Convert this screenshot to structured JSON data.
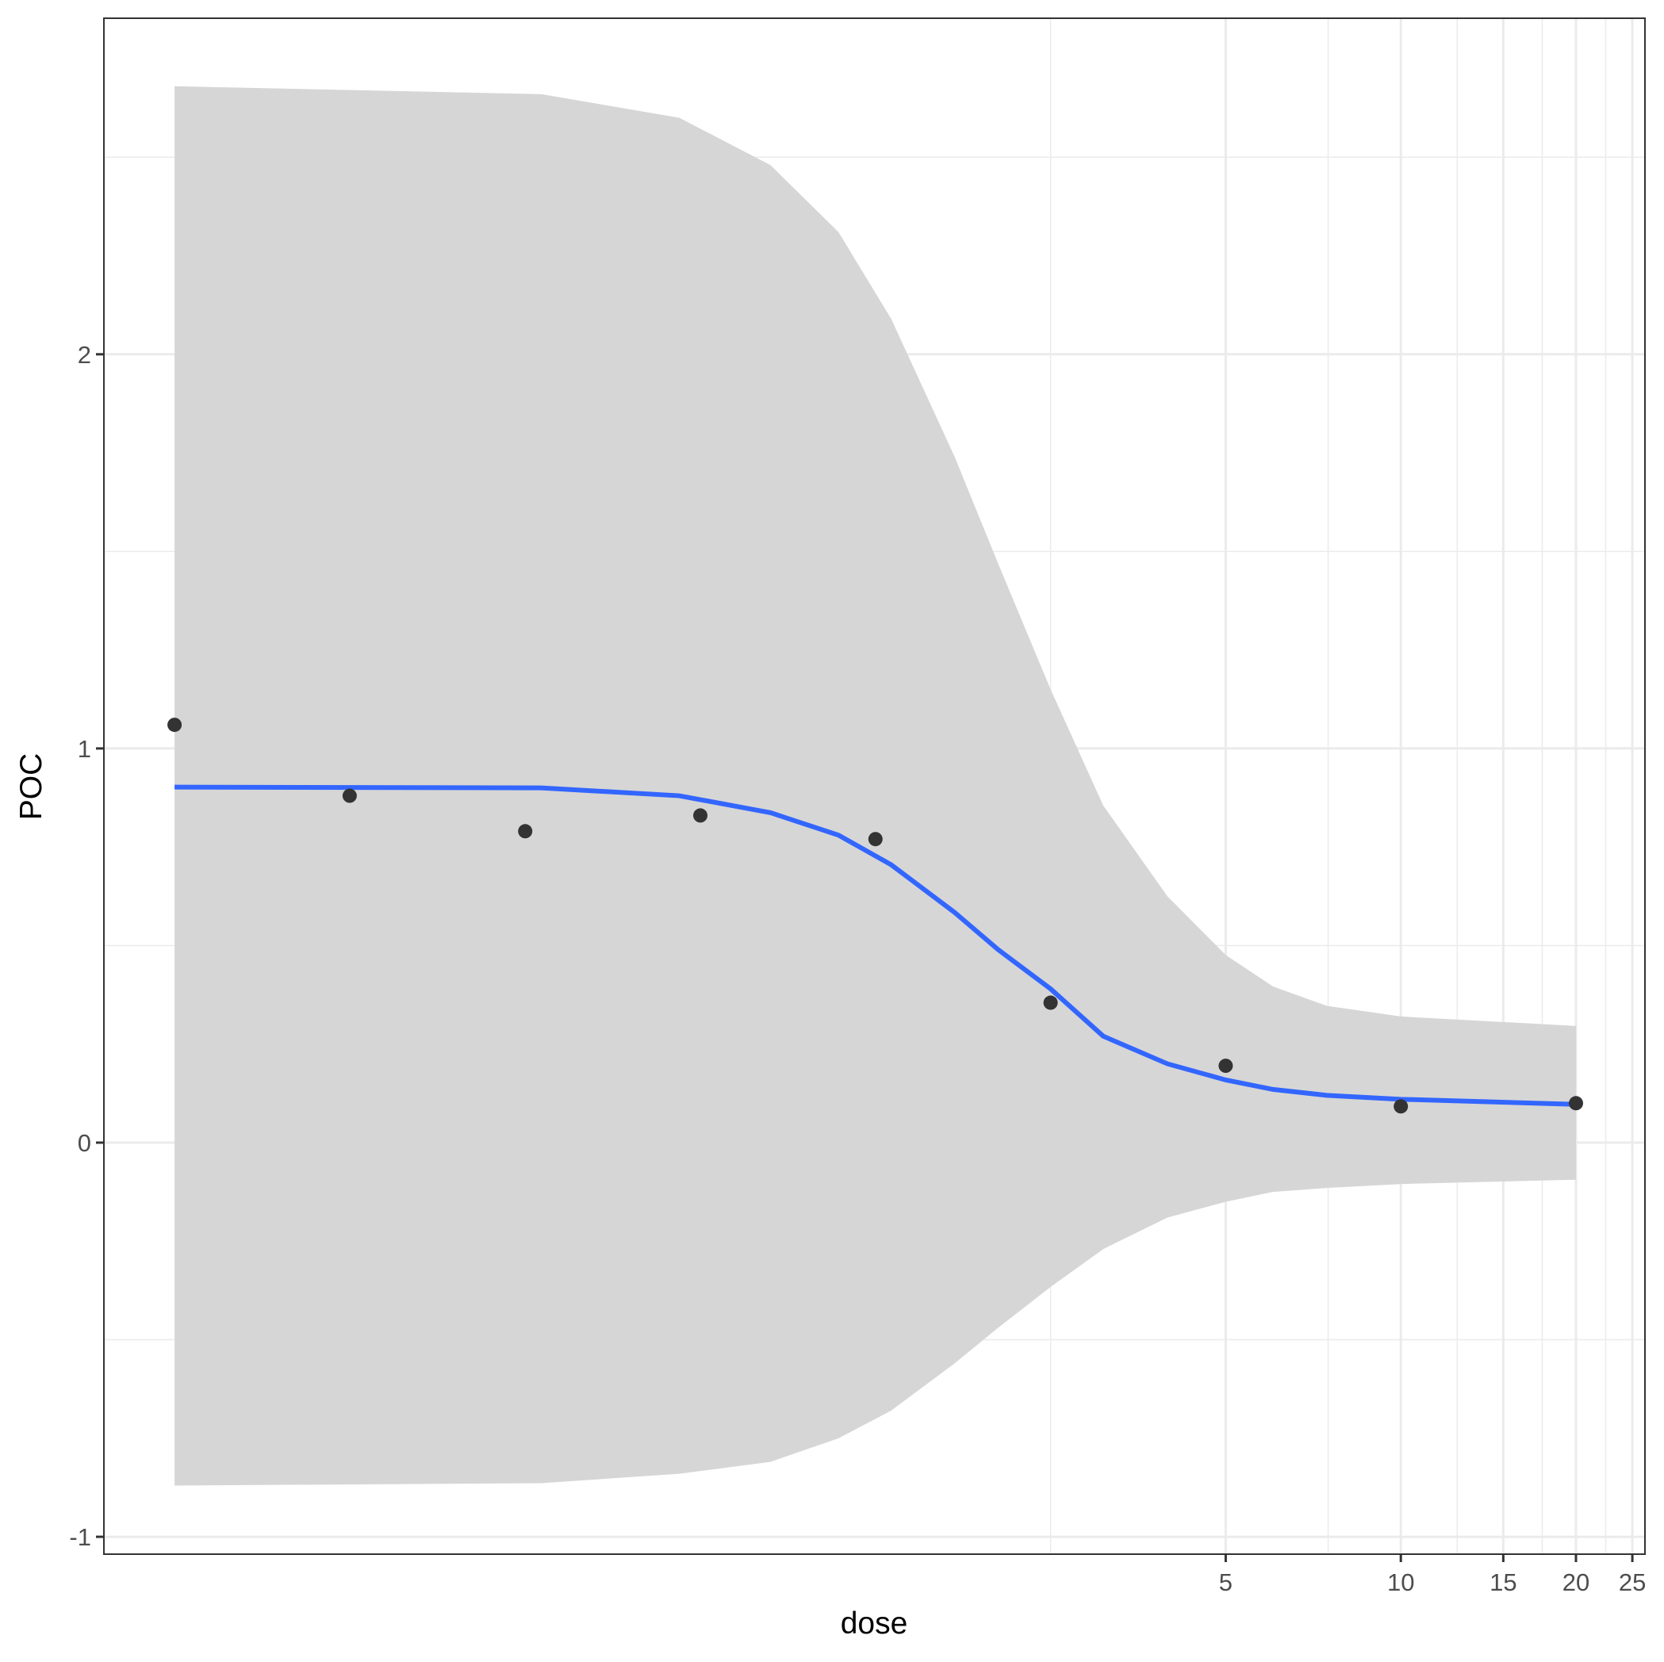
{
  "chart_data": {
    "type": "line",
    "title": "",
    "xlabel": "dose",
    "ylabel": "POC",
    "x_scale": "log",
    "xlim": [
      0.064,
      26.5
    ],
    "ylim": [
      -1.04,
      2.86
    ],
    "grid": true,
    "x_ticks": [
      {
        "value": 5,
        "label": "5"
      },
      {
        "value": 10,
        "label": "10"
      },
      {
        "value": 15,
        "label": "15"
      },
      {
        "value": 20,
        "label": "20"
      },
      {
        "value": 25,
        "label": "25"
      }
    ],
    "x_minor_grid": [
      2.5,
      7.5,
      12.5,
      17.5,
      22.5
    ],
    "y_ticks": [
      {
        "value": -1,
        "label": "-1"
      },
      {
        "value": 0,
        "label": "0"
      },
      {
        "value": 1,
        "label": "1"
      },
      {
        "value": 2,
        "label": "2"
      }
    ],
    "y_minor_grid": [
      -0.5,
      0.5,
      1.5,
      2.5
    ],
    "points": {
      "x": [
        0.078,
        0.156,
        0.3125,
        0.625,
        1.25,
        2.5,
        5,
        10,
        20
      ],
      "y": [
        1.06,
        0.88,
        0.79,
        0.83,
        0.77,
        0.355,
        0.195,
        0.092,
        0.1
      ]
    },
    "fit": {
      "x": [
        0.078,
        0.333,
        0.575,
        0.825,
        1.08,
        1.33,
        1.71,
        2.03,
        2.5,
        3.08,
        3.97,
        5,
        6.03,
        7.46,
        10,
        20
      ],
      "y": [
        0.902,
        0.9,
        0.88,
        0.837,
        0.78,
        0.705,
        0.584,
        0.49,
        0.39,
        0.27,
        0.2,
        0.159,
        0.135,
        0.12,
        0.11,
        0.097
      ],
      "upper": [
        2.68,
        2.66,
        2.6,
        2.48,
        2.31,
        2.09,
        1.74,
        1.47,
        1.15,
        0.855,
        0.625,
        0.476,
        0.396,
        0.347,
        0.32,
        0.296
      ],
      "lower": [
        -0.87,
        -0.864,
        -0.84,
        -0.81,
        -0.75,
        -0.68,
        -0.56,
        -0.47,
        -0.366,
        -0.27,
        -0.19,
        -0.15,
        -0.125,
        -0.115,
        -0.105,
        -0.094
      ]
    },
    "colors": {
      "line": "#3366FF",
      "ribbon": "#d6d6d6",
      "points": "#333333",
      "grid": "#ebebeb"
    }
  }
}
